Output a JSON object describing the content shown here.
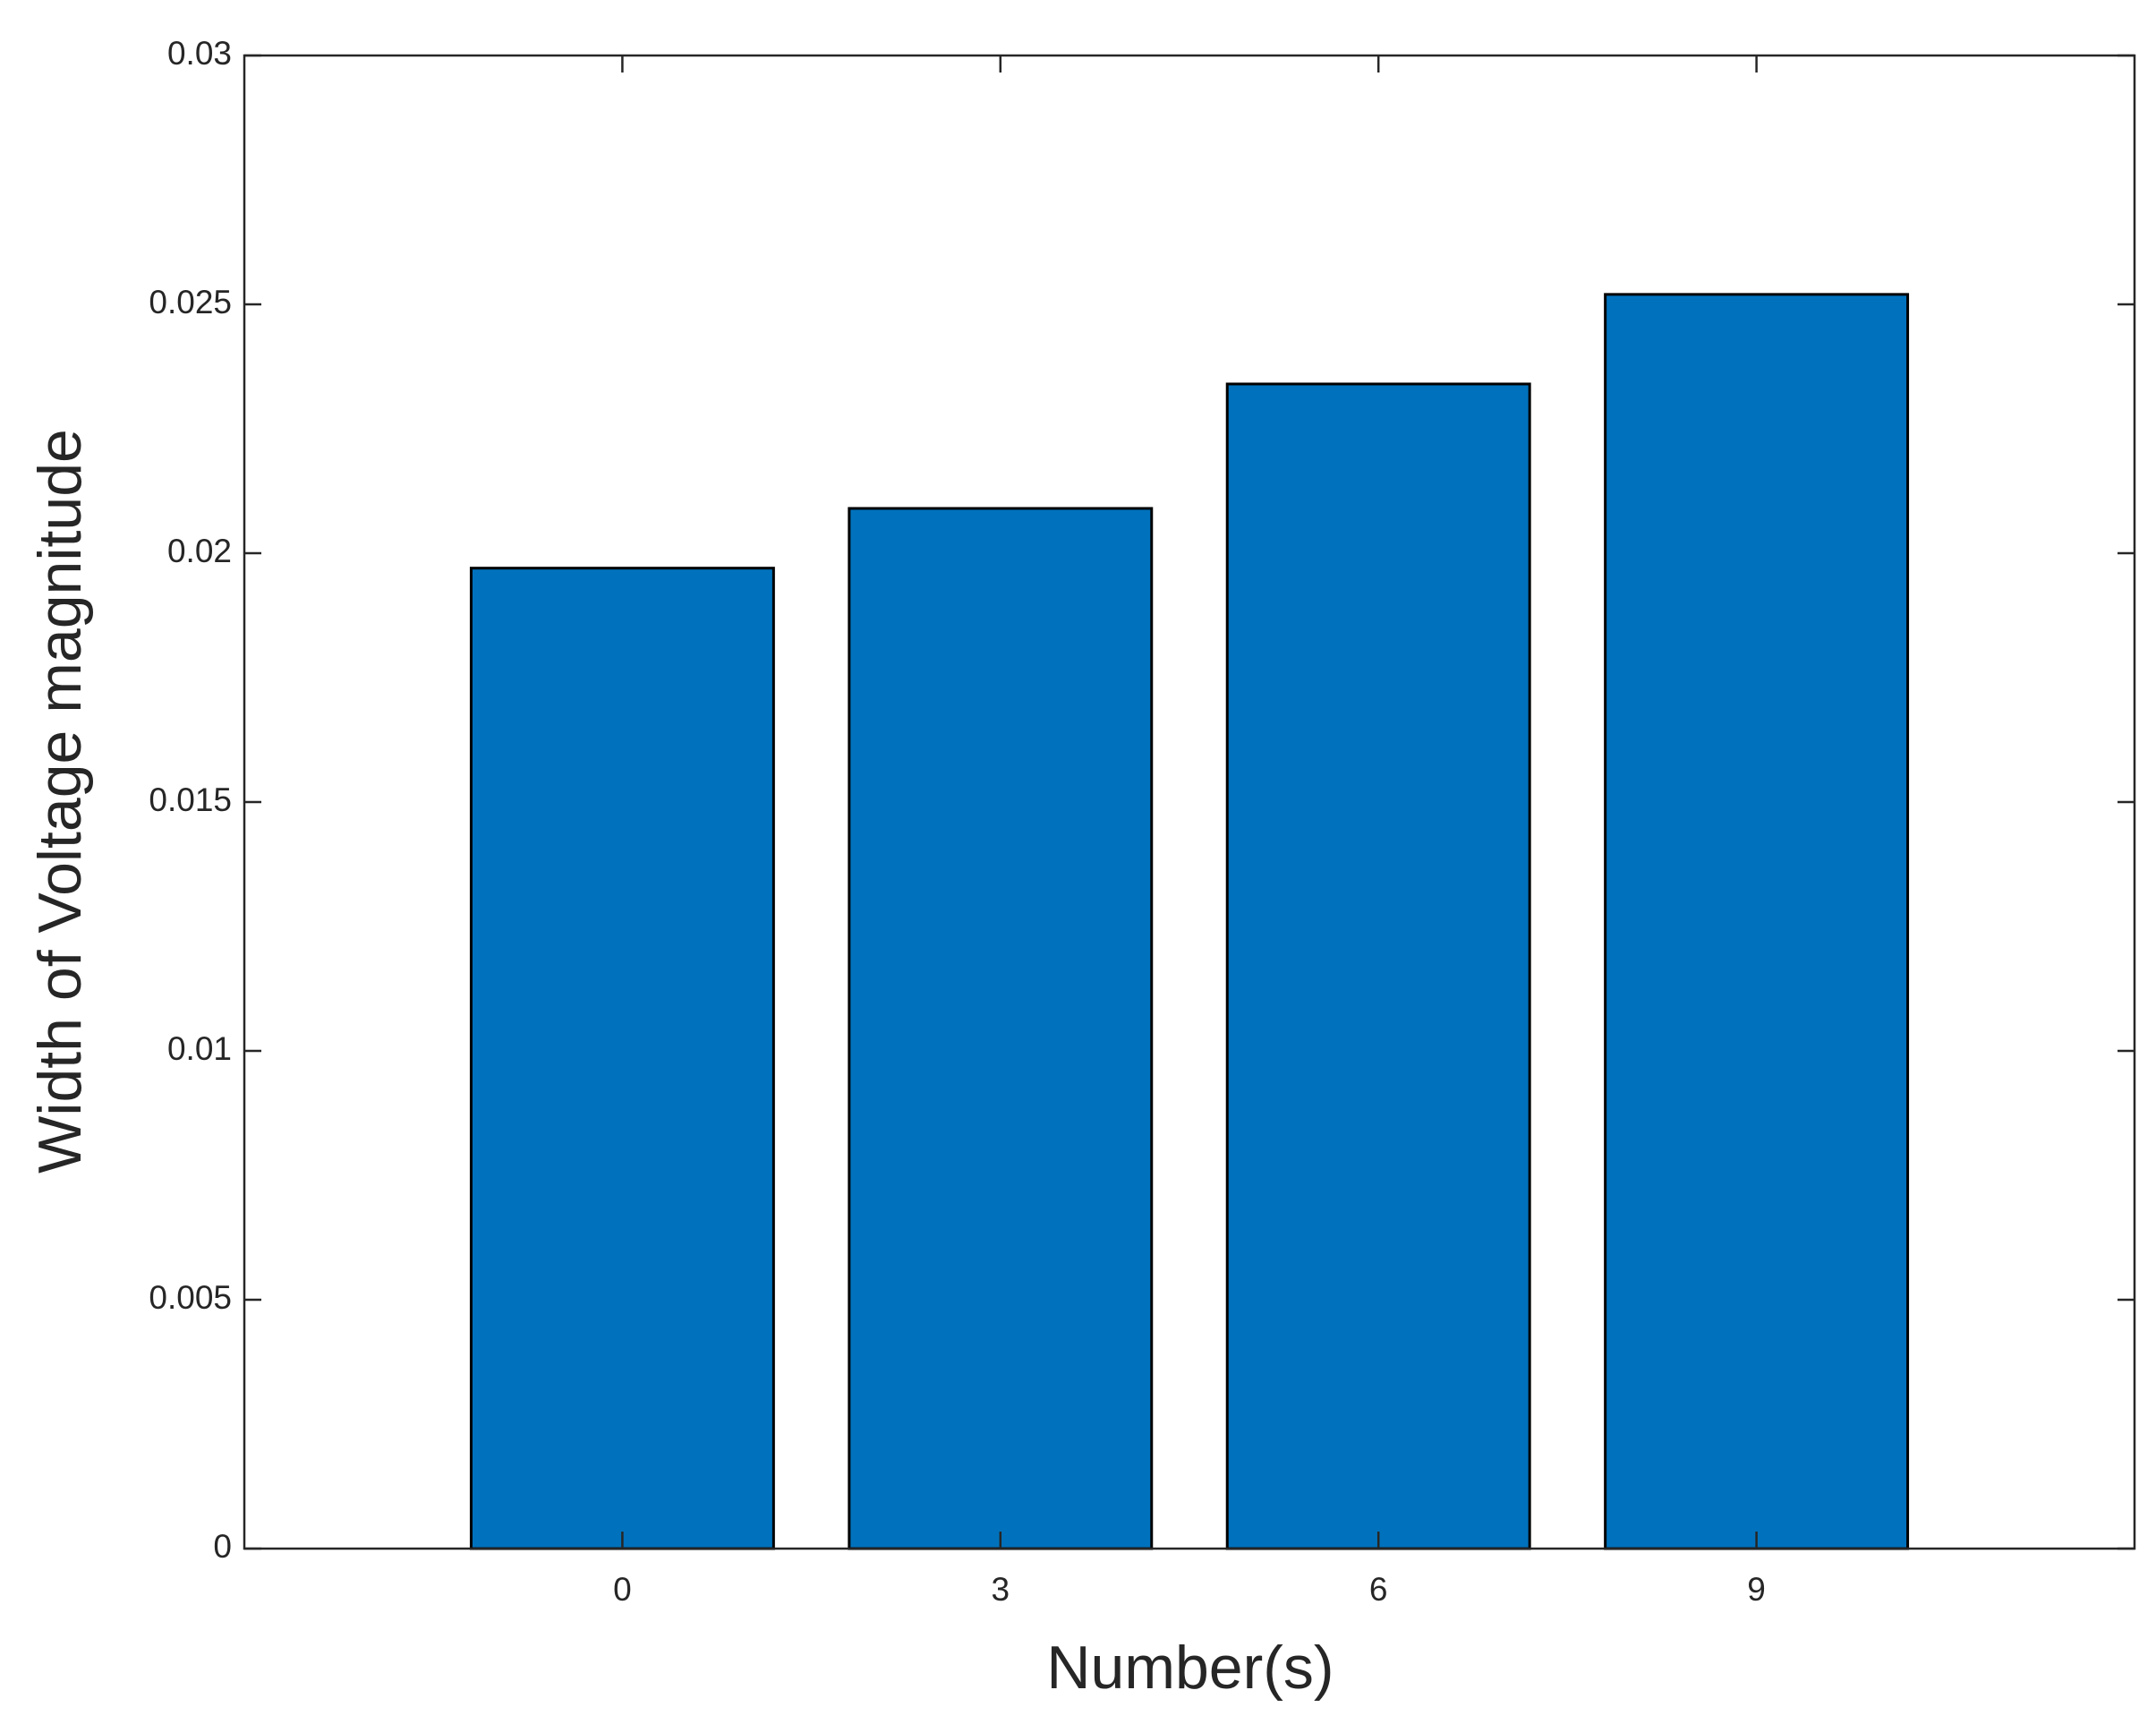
{
  "chart_data": {
    "type": "bar",
    "x_label": "Number(s)",
    "y_label": "Width of Voltage magnitude",
    "x": [
      0,
      3,
      6,
      9
    ],
    "values": [
      0.0197,
      0.0209,
      0.0234,
      0.0252
    ],
    "color": "#0072bd",
    "xlim": [
      -3,
      12
    ],
    "xticks": [
      0,
      3,
      6,
      9
    ],
    "ylim": [
      0,
      0.03
    ],
    "yticks": [
      0,
      0.005,
      0.01,
      0.015,
      0.02,
      0.025,
      0.03
    ],
    "grid": false
  }
}
